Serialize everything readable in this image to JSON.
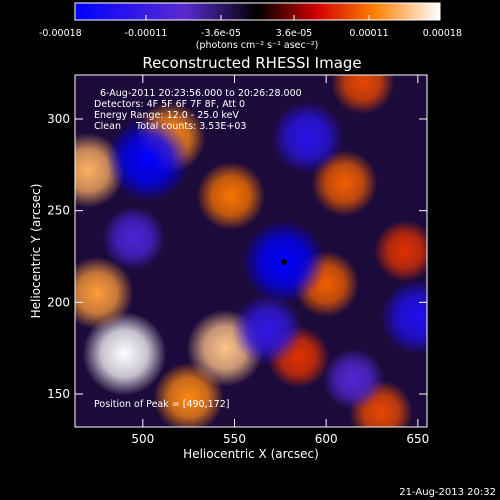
{
  "colorbar": {
    "tick_labels": [
      "-0.00018",
      "-0.00011",
      "-3.6e-05",
      "3.6e-05",
      "0.00011",
      "0.00018"
    ],
    "tick_values": [
      -0.00018,
      -0.00011,
      -3.6e-05,
      3.6e-05,
      0.00011,
      0.00018
    ],
    "range": [
      -0.00018,
      0.00018
    ],
    "unit_label": "(photons cm⁻² s⁻¹ asec⁻²)"
  },
  "chart_data": {
    "type": "heatmap",
    "title": "Reconstructed RHESSI Image",
    "xlabel": "Heliocentric X (arcsec)",
    "ylabel": "Heliocentric Y (arcsec)",
    "xlim": [
      463,
      655
    ],
    "ylim": [
      132,
      324
    ],
    "x_ticks": [
      500,
      550,
      600,
      650
    ],
    "y_ticks": [
      150,
      200,
      250,
      300
    ],
    "colormap": [
      "#0000ff",
      "#5a2ad0",
      "#000000",
      "#d00000",
      "#ff8000",
      "#ffffff"
    ],
    "value_range": [
      -0.00018,
      0.00018
    ],
    "annotations": [
      "6-Aug-2011 20:23:56.000 to 20:26:28.000",
      "Detectors: 4F 5F 6F 7F 8F, Att 0",
      "Energy Range: 12.0 - 25.0 keV",
      "Clean     Total counts: 3.53E+03"
    ],
    "peak_label": "Position of Peak = [490,172]",
    "peak_position": [
      490,
      172
    ],
    "marker_position": [
      577,
      222
    ],
    "features": [
      {
        "x": 470,
        "y": 272,
        "v": 0.00014
      },
      {
        "x": 515,
        "y": 290,
        "v": 0.00012
      },
      {
        "x": 548,
        "y": 258,
        "v": 0.00011
      },
      {
        "x": 490,
        "y": 172,
        "v": 0.00018
      },
      {
        "x": 475,
        "y": 205,
        "v": 0.00013
      },
      {
        "x": 525,
        "y": 148,
        "v": 0.00012
      },
      {
        "x": 545,
        "y": 175,
        "v": 0.00015
      },
      {
        "x": 610,
        "y": 265,
        "v": 0.0001
      },
      {
        "x": 630,
        "y": 140,
        "v": 9e-05
      },
      {
        "x": 585,
        "y": 170,
        "v": 8e-05
      },
      {
        "x": 600,
        "y": 210,
        "v": 0.0001
      },
      {
        "x": 643,
        "y": 228,
        "v": 8e-05
      },
      {
        "x": 620,
        "y": 320,
        "v": 9e-05
      },
      {
        "x": 503,
        "y": 278,
        "v": -0.00018
      },
      {
        "x": 577,
        "y": 222,
        "v": -0.00018
      },
      {
        "x": 590,
        "y": 290,
        "v": -0.00013
      },
      {
        "x": 650,
        "y": 192,
        "v": -0.00014
      },
      {
        "x": 568,
        "y": 185,
        "v": -0.00012
      },
      {
        "x": 495,
        "y": 235,
        "v": -9e-05
      },
      {
        "x": 615,
        "y": 158,
        "v": -8e-05
      }
    ]
  },
  "footer": {
    "timestamp": "21-Aug-2013 20:32"
  }
}
